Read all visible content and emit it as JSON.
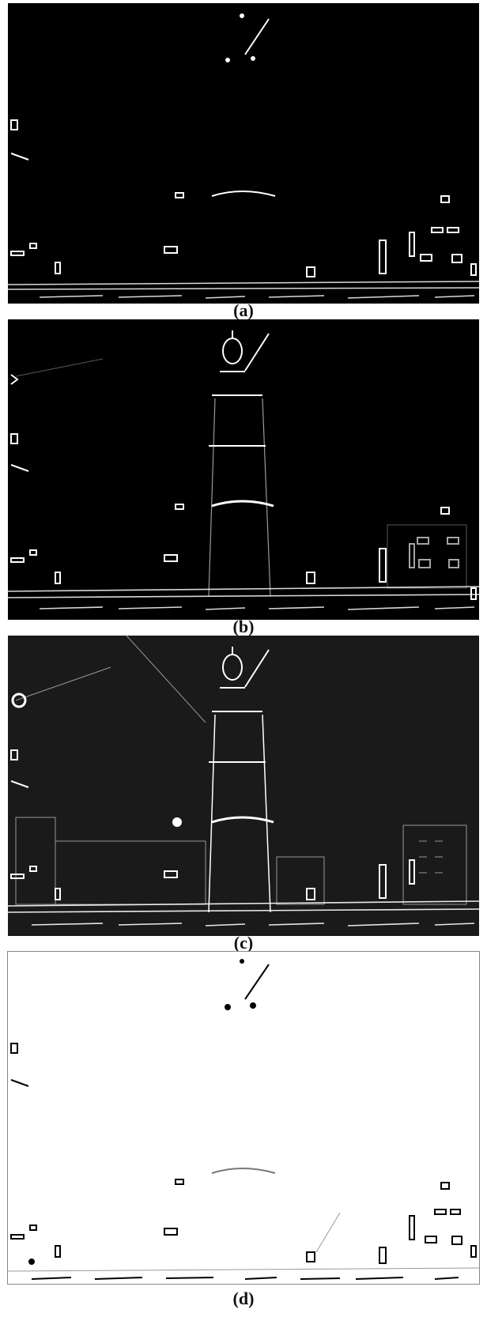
{
  "figure": {
    "panels": [
      {
        "id": "a",
        "caption": "(a)",
        "style": "dark-sparse-edges",
        "background": "#000000",
        "stroke": "#ffffff"
      },
      {
        "id": "b",
        "caption": "(b)",
        "style": "dark-medium-edges",
        "background": "#000000",
        "stroke": "#ffffff"
      },
      {
        "id": "c",
        "caption": "(c)",
        "style": "dark-dense-edges",
        "background": "#1a1a1a",
        "stroke": "#ffffff"
      },
      {
        "id": "d",
        "caption": "(d)",
        "style": "inverted-edges",
        "background": "#ffffff",
        "stroke": "#000000"
      }
    ]
  }
}
